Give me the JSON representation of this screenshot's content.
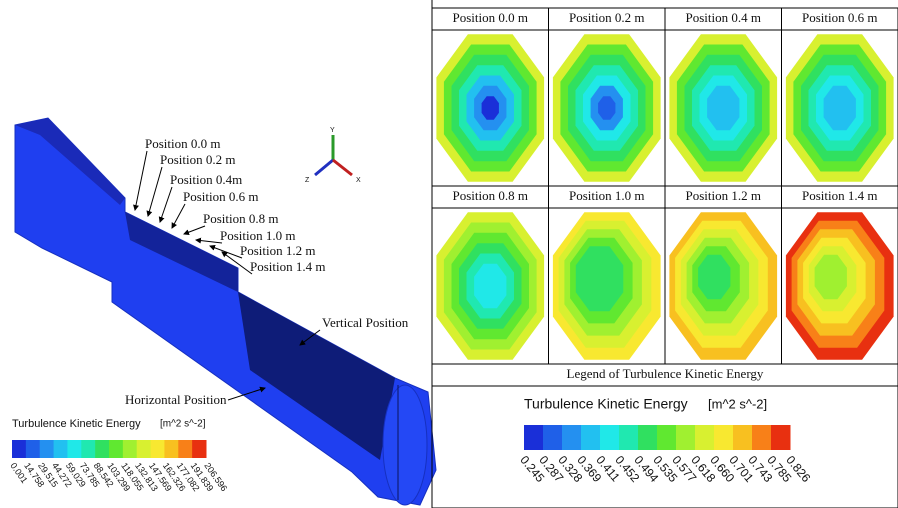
{
  "left": {
    "labels": [
      "Position 0.0 m",
      "Position 0.2 m",
      "Position 0.4m",
      "Position 0.6 m",
      "Position 0.8 m",
      "Position 1.0 m",
      "Position 1.2 m",
      "Position 1.4 m"
    ],
    "vertical": "Vertical Position",
    "horizontal": "Horizontal Position",
    "axes": [
      "Y",
      "Z",
      "X"
    ],
    "legend": {
      "title": "Turbulence Kinetic Energy",
      "unit": "[m^2 s^-2]",
      "ticks": [
        "0.001",
        "14.758",
        "29.515",
        "44.272",
        "59.029",
        "73.785",
        "88.542",
        "103.299",
        "118.055",
        "132.813",
        "147.569",
        "162.326",
        "177.082",
        "191.839",
        "206.596"
      ]
    }
  },
  "right": {
    "panels": [
      "Position 0.0 m",
      "Position 0.2 m",
      "Position 0.4 m",
      "Position 0.6 m",
      "Position 0.8 m",
      "Position 1.0 m",
      "Position 1.2 m",
      "Position 1.4 m"
    ],
    "legend": {
      "heading": "Legend of Turbulence Kinetic Energy",
      "title": "Turbulence Kinetic Energy",
      "unit": "[m^2 s^-2]",
      "ticks": [
        "0.245",
        "0.287",
        "0.328",
        "0.369",
        "0.411",
        "0.452",
        "0.494",
        "0.535",
        "0.577",
        "0.618",
        "0.660",
        "0.701",
        "0.743",
        "0.785",
        "0.826"
      ]
    }
  }
}
